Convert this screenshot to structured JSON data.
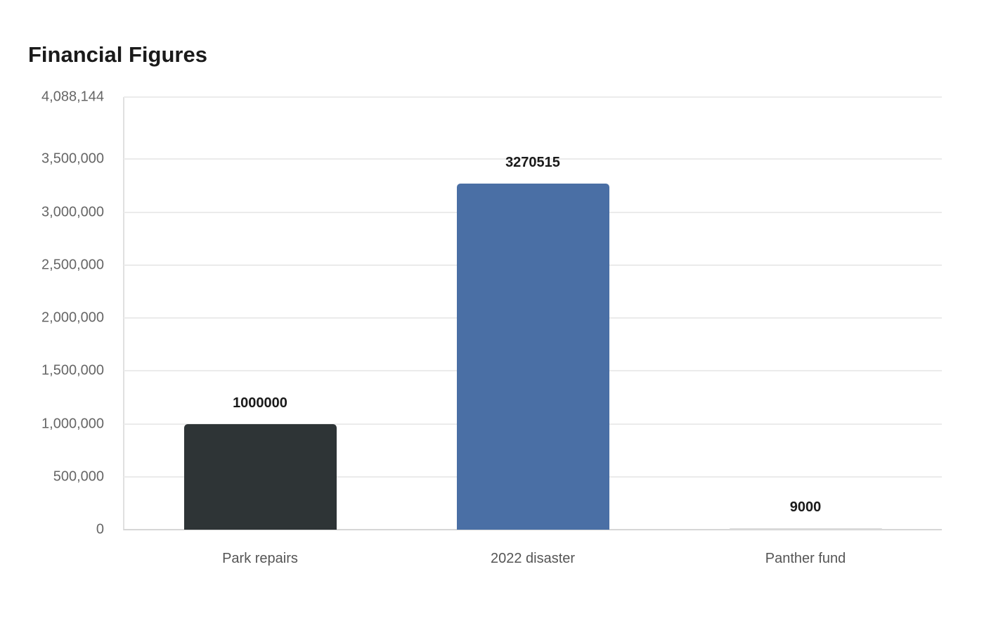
{
  "title": "Financial Figures",
  "colors": {
    "bar1": "#2e3436",
    "bar2": "#4a6fa5",
    "bar3": "#d9d9d9"
  },
  "y_ticks": [
    "4,088,144",
    "3,500,000",
    "3,000,000",
    "2,500,000",
    "2,000,000",
    "1,500,000",
    "1,000,000",
    "500,000",
    "0"
  ],
  "chart_data": {
    "type": "bar",
    "title": "Financial Figures",
    "categories": [
      "Park repairs",
      "2022 disaster",
      "Panther fund"
    ],
    "values": [
      1000000,
      3270515,
      9000
    ],
    "value_labels": [
      "1000000",
      "3270515",
      "9000"
    ],
    "xlabel": "",
    "ylabel": "",
    "ylim": [
      0,
      4088144
    ],
    "y_ticks": [
      0,
      500000,
      1000000,
      1500000,
      2000000,
      2500000,
      3000000,
      3500000,
      4088144
    ],
    "grid": true,
    "legend": "none"
  }
}
